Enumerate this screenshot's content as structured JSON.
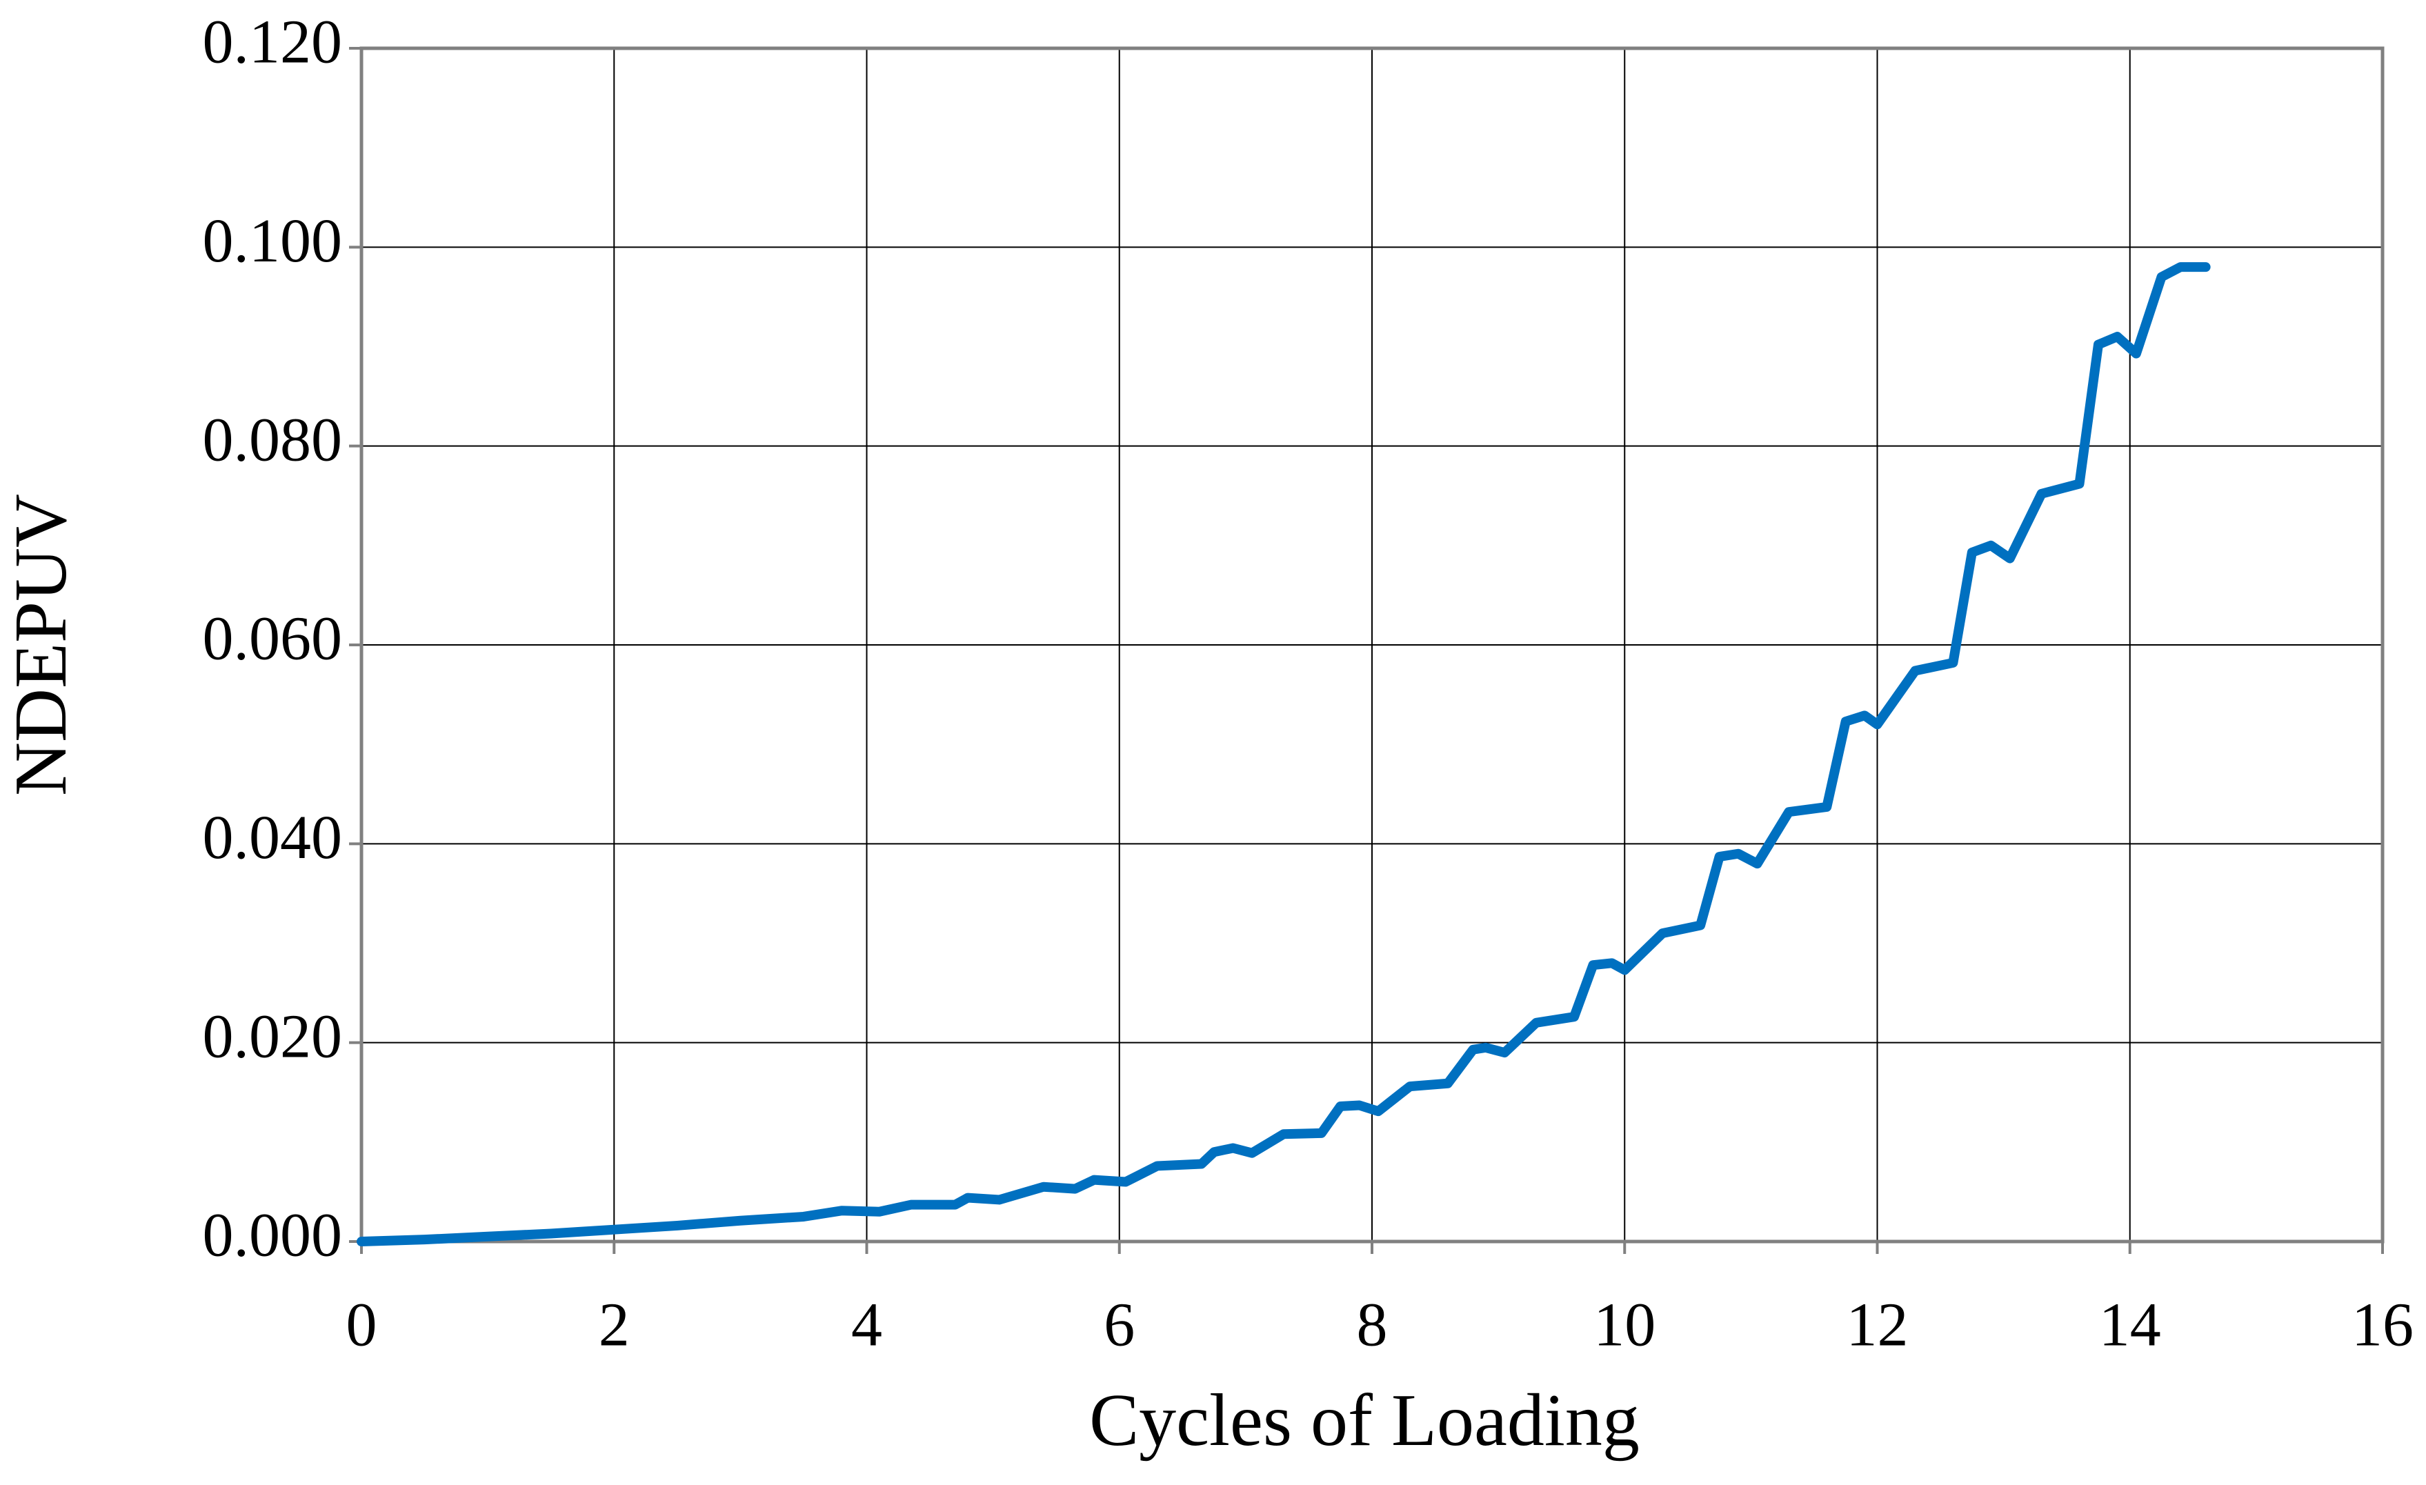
{
  "chart_data": {
    "type": "line",
    "xlabel": "Cycles of Loading",
    "ylabel": "NDEPUV",
    "xlim": [
      0,
      16
    ],
    "xticks": [
      0,
      2,
      4,
      6,
      8,
      10,
      12,
      14,
      16
    ],
    "ylim": [
      0,
      0.12
    ],
    "yticks": [
      {
        "value": 0,
        "label": "0.000"
      },
      {
        "value": 0.02,
        "label": "0.020"
      },
      {
        "value": 0.04,
        "label": "0.040"
      },
      {
        "value": 0.06,
        "label": "0.060"
      },
      {
        "value": 0.08,
        "label": "0.080"
      },
      {
        "value": 0.1,
        "label": "0.100"
      },
      {
        "value": 0.12,
        "label": "0.120"
      }
    ],
    "grid": true,
    "series": [
      {
        "color": "#0070c0",
        "x": [
          0,
          0.5,
          1,
          1.5,
          2,
          2.5,
          3,
          3.5,
          3.8,
          4.1,
          4.35,
          4.7,
          4.8,
          5.05,
          5.4,
          5.65,
          5.8,
          6.05,
          6.3,
          6.65,
          6.75,
          6.9,
          7.05,
          7.3,
          7.6,
          7.75,
          7.9,
          8.05,
          8.3,
          8.6,
          8.8,
          8.9,
          9.05,
          9.3,
          9.6,
          9.75,
          9.9,
          10.0,
          10.3,
          10.6,
          10.75,
          10.9,
          11.05,
          11.3,
          11.6,
          11.75,
          11.9,
          12.0,
          12.3,
          12.6,
          12.75,
          12.9,
          13.05,
          13.3,
          13.6,
          13.75,
          13.9,
          14.05,
          14.25,
          14.4,
          14.6
        ],
        "values": [
          0,
          0.0002,
          0.0005,
          0.0008,
          0.0012,
          0.0016,
          0.0021,
          0.0025,
          0.0031,
          0.003,
          0.0037,
          0.0037,
          0.0044,
          0.0042,
          0.0055,
          0.0053,
          0.0062,
          0.006,
          0.0076,
          0.0078,
          0.009,
          0.0094,
          0.0089,
          0.0108,
          0.0109,
          0.0136,
          0.0137,
          0.0131,
          0.0156,
          0.0159,
          0.0193,
          0.0195,
          0.019,
          0.022,
          0.0226,
          0.0278,
          0.028,
          0.0273,
          0.031,
          0.0318,
          0.0387,
          0.039,
          0.038,
          0.0432,
          0.0437,
          0.0523,
          0.0529,
          0.052,
          0.0574,
          0.0582,
          0.0693,
          0.07,
          0.0687,
          0.0752,
          0.0762,
          0.0902,
          0.091,
          0.0893,
          0.097,
          0.098,
          0.098
        ]
      }
    ]
  }
}
